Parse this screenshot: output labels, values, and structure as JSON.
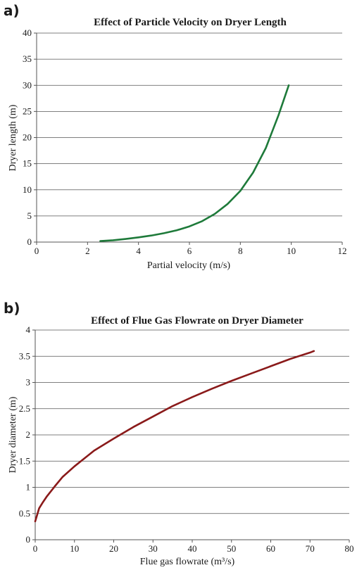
{
  "chart_data": [
    {
      "type": "line",
      "panel_label": "a)",
      "title": "Effect of Particle Velocity on Dryer Length",
      "xlabel": "Partial velocity (m/s)",
      "ylabel": "Dryer length (m)",
      "xlim": [
        0,
        12
      ],
      "ylim": [
        0,
        40
      ],
      "xticks": [
        0,
        2,
        4,
        6,
        8,
        10,
        12
      ],
      "yticks": [
        0,
        5,
        10,
        15,
        20,
        25,
        30,
        35,
        40
      ],
      "grid": "horizontal",
      "color": "#1e7a3a",
      "series": [
        {
          "x": [
            2.5,
            3,
            3.5,
            4,
            4.5,
            5,
            5.5,
            6,
            6.5,
            7,
            7.5,
            8,
            8.5,
            9,
            9.5,
            9.9
          ],
          "y": [
            0.2,
            0.35,
            0.6,
            0.9,
            1.25,
            1.7,
            2.25,
            3.0,
            4.0,
            5.4,
            7.3,
            9.8,
            13.3,
            18.0,
            24.3,
            30.0
          ]
        }
      ]
    },
    {
      "type": "line",
      "panel_label": "b)",
      "title": "Effect of Flue Gas Flowrate on Dryer Diameter",
      "xlabel": "Flue gas flowrate (m³/s)",
      "ylabel": "Dryer diameter (m)",
      "xlim": [
        0,
        80
      ],
      "ylim": [
        0,
        4
      ],
      "xticks": [
        0,
        10,
        20,
        30,
        40,
        50,
        60,
        70,
        80
      ],
      "yticks": [
        0,
        0.5,
        1,
        1.5,
        2,
        2.5,
        3,
        3.5,
        4
      ],
      "grid": "horizontal",
      "color": "#8a1a1a",
      "series": [
        {
          "x": [
            0,
            1,
            2,
            3,
            5,
            7,
            10,
            15,
            20,
            25,
            30,
            35,
            40,
            45,
            50,
            55,
            60,
            65,
            70,
            71
          ],
          "y": [
            0.35,
            0.6,
            0.72,
            0.83,
            1.02,
            1.2,
            1.4,
            1.7,
            1.93,
            2.15,
            2.35,
            2.55,
            2.72,
            2.88,
            3.03,
            3.17,
            3.31,
            3.45,
            3.57,
            3.6
          ]
        }
      ]
    }
  ]
}
